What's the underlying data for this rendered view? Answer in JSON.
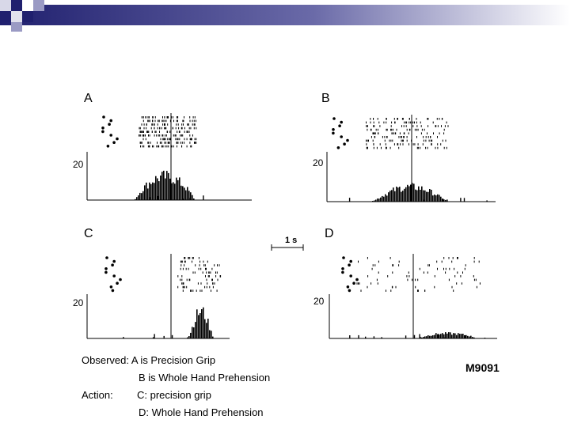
{
  "panels": [
    {
      "label": "A",
      "axis_value": "20"
    },
    {
      "label": "B",
      "axis_value": "20"
    },
    {
      "label": "C",
      "axis_value": "20"
    },
    {
      "label": "D",
      "axis_value": "20"
    }
  ],
  "scale_bar": {
    "label": "1 s"
  },
  "monkey_id": "M9091",
  "notes": {
    "observed_label": "Observed: A is Precision Grip",
    "observed_b": "B is Whole Hand Prehension",
    "action_label": "Action:",
    "action_c": "C: precision grip",
    "action_d": "D: Whole Hand Prehension"
  },
  "colors": {
    "header_dark": "#1f1f6e",
    "header_light": "#e8e8f0",
    "ink": "#000000"
  }
}
